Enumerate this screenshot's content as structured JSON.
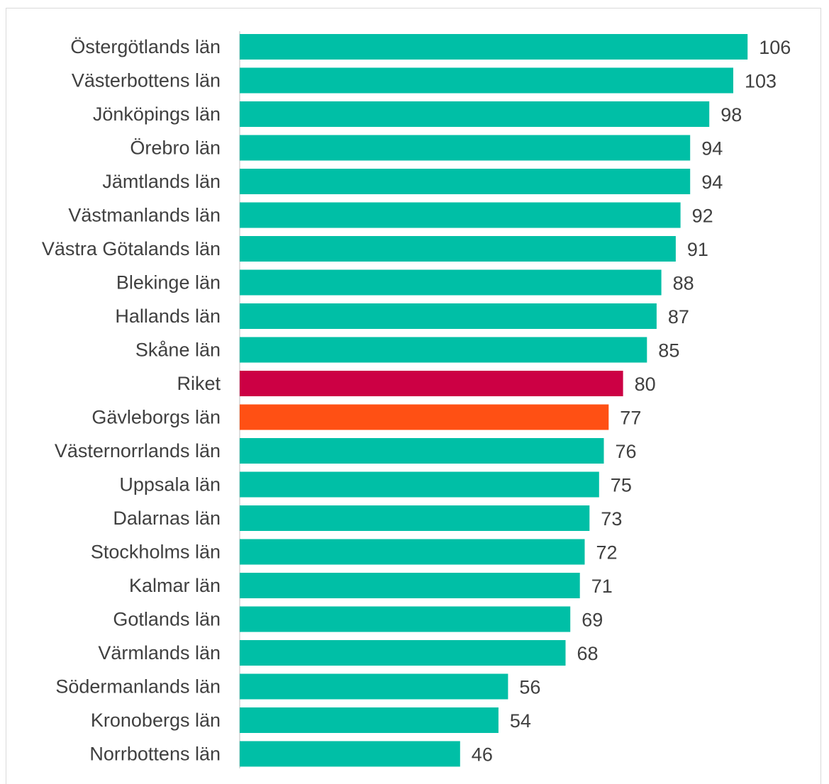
{
  "chart_data": {
    "type": "bar",
    "orientation": "horizontal",
    "categories": [
      "Östergötlands län",
      "Västerbottens län",
      "Jönköpings län",
      "Örebro län",
      "Jämtlands län",
      "Västmanlands län",
      "Västra Götalands län",
      "Blekinge län",
      "Hallands län",
      "Skåne län",
      "Riket",
      "Gävleborgs län",
      "Västernorrlands län",
      "Uppsala län",
      "Dalarnas län",
      "Stockholms län",
      "Kalmar län",
      "Gotlands län",
      "Värmlands län",
      "Södermanlands län",
      "Kronobergs län",
      "Norrbottens län"
    ],
    "values": [
      106,
      103,
      98,
      94,
      94,
      92,
      91,
      88,
      87,
      85,
      80,
      77,
      76,
      75,
      73,
      72,
      71,
      69,
      68,
      56,
      54,
      46
    ],
    "value_labels": [
      "106",
      "103",
      "98",
      "94",
      "94",
      "92",
      "91",
      "88",
      "87",
      "85",
      "80",
      "77",
      "76",
      "75",
      "73",
      "72",
      "71",
      "69",
      "68",
      "56",
      "54",
      "46"
    ],
    "title": "",
    "xlabel": "",
    "ylabel": "",
    "xlim": [
      0,
      107
    ],
    "grid": false,
    "legend": "none",
    "colors": {
      "default": "#00BFA6",
      "highlight_national": "#CC0044",
      "highlight_region": "#FF5014",
      "text": "#404040",
      "axis": "#bfbfbf"
    },
    "highlights": {
      "Riket": "highlight_national",
      "Gävleborgs län": "highlight_region"
    }
  }
}
